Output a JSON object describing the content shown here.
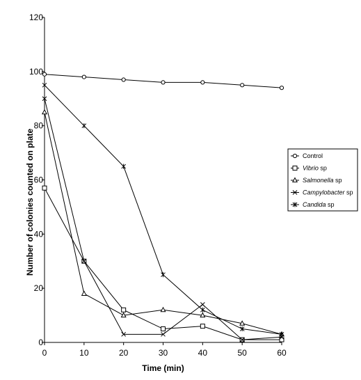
{
  "chart_data": {
    "type": "line",
    "title": "",
    "xlabel": "Time (min)",
    "ylabel": "Number of colonies counted on plate",
    "x": [
      0,
      10,
      20,
      30,
      40,
      50,
      60
    ],
    "xlim": [
      0,
      60
    ],
    "ylim": [
      0,
      120
    ],
    "xticks": [
      0,
      10,
      20,
      30,
      40,
      50,
      60
    ],
    "yticks": [
      0,
      20,
      40,
      60,
      80,
      100,
      120
    ],
    "grid": false,
    "legend_position": "right",
    "series": [
      {
        "name": "Control",
        "marker": "circle",
        "italic": false,
        "values": [
          99,
          98,
          97,
          96,
          96,
          95,
          94
        ]
      },
      {
        "name": "Vibrio sp",
        "name_parts": [
          "Vibrio",
          " sp"
        ],
        "marker": "square",
        "italic": true,
        "values": [
          57,
          30,
          12,
          5,
          6,
          1,
          1
        ]
      },
      {
        "name": "Salmonella sp",
        "name_parts": [
          "Salmonella",
          " sp"
        ],
        "marker": "triangle",
        "italic": true,
        "values": [
          85,
          18,
          10,
          12,
          10,
          7,
          3
        ]
      },
      {
        "name": "Campylobacter sp",
        "name_parts": [
          "Campylobacter",
          " sp"
        ],
        "marker": "x",
        "italic": true,
        "values": [
          90,
          30,
          3,
          3,
          14,
          1,
          2
        ]
      },
      {
        "name": "Candida sp",
        "name_parts": [
          "Candida",
          " sp"
        ],
        "marker": "star",
        "italic": true,
        "values": [
          95,
          80,
          65,
          25,
          12,
          5,
          3
        ]
      }
    ]
  }
}
